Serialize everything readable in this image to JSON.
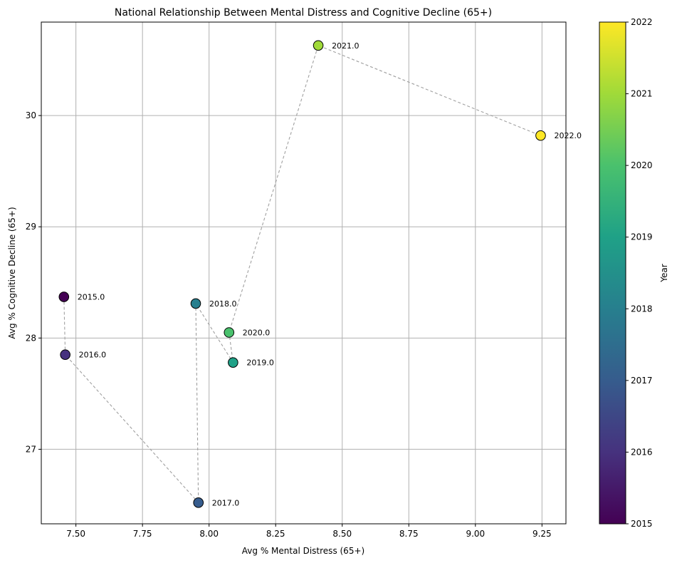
{
  "chart_data": {
    "type": "scatter",
    "title": "National Relationship Between Mental Distress and Cognitive Decline (65+)",
    "xlabel": "Avg % Mental Distress (65+)",
    "ylabel": "Avg % Cognitive Decline (65+)",
    "xlim": [
      7.37,
      9.34
    ],
    "ylim": [
      26.33,
      30.84
    ],
    "xticks": [
      "7.50",
      "7.75",
      "8.00",
      "8.25",
      "8.50",
      "8.75",
      "9.00",
      "9.25"
    ],
    "yticks": [
      "27",
      "28",
      "29",
      "30"
    ],
    "grid": true,
    "connect_points": "dashed-gray",
    "colorbar": {
      "label": "Year",
      "colormap": "viridis",
      "range": [
        2015,
        2022
      ],
      "ticks": [
        "2015",
        "2016",
        "2017",
        "2018",
        "2019",
        "2020",
        "2021",
        "2022"
      ]
    },
    "points": [
      {
        "year": 2015,
        "x": 7.455,
        "y": 28.37,
        "label": "2015.0",
        "color": "#440154"
      },
      {
        "year": 2016,
        "x": 7.46,
        "y": 27.85,
        "label": "2016.0",
        "color": "#46327e"
      },
      {
        "year": 2017,
        "x": 7.96,
        "y": 26.52,
        "label": "2017.0",
        "color": "#365c8d"
      },
      {
        "year": 2018,
        "x": 7.95,
        "y": 28.31,
        "label": "2018.0",
        "color": "#277f8e"
      },
      {
        "year": 2019,
        "x": 8.09,
        "y": 27.78,
        "label": "2019.0",
        "color": "#1fa187"
      },
      {
        "year": 2020,
        "x": 8.075,
        "y": 28.05,
        "label": "2020.0",
        "color": "#4ac16d"
      },
      {
        "year": 2021,
        "x": 8.41,
        "y": 30.63,
        "label": "2021.0",
        "color": "#a0da39"
      },
      {
        "year": 2022,
        "x": 9.245,
        "y": 29.82,
        "label": "2022.0",
        "color": "#fde725"
      }
    ]
  }
}
